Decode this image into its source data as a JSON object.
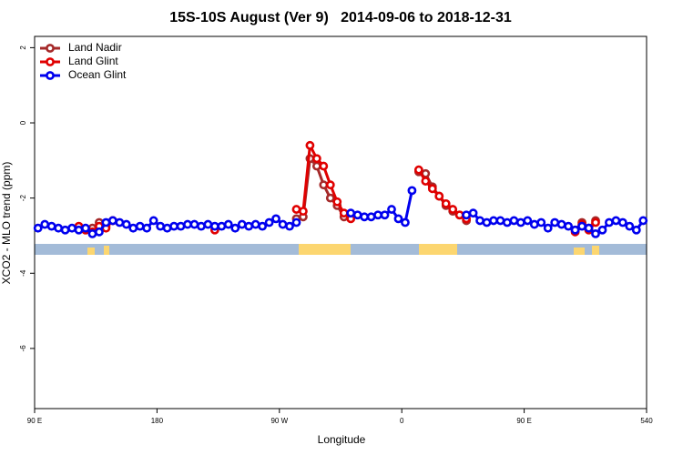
{
  "chart_data": {
    "type": "line",
    "title": "15S-10S August (Ver 9)   2014-09-06 to 2018-12-31",
    "xlabel": "Longitude",
    "ylabel": "XCO2 - MLO trend (ppm)",
    "xlim": [
      90,
      540
    ],
    "ylim": [
      -7.6,
      2.3
    ],
    "xticks": [
      {
        "value": 90,
        "label": "90 E"
      },
      180,
      {
        "value": 270,
        "label": "90 W"
      },
      {
        "value": 360,
        "label": "0"
      },
      {
        "value": 450,
        "label": "90 E"
      },
      540
    ],
    "yticks": [
      2,
      0,
      -2,
      -4,
      -6
    ],
    "legend": "top-left",
    "series": [
      {
        "name": "Land Nadir",
        "color": "#a52a2a",
        "x": [
          127.5,
          132.5,
          137.5,
          142.5,
          147.5,
          215,
          282.5,
          287.5,
          292.5,
          297.5,
          302.5,
          307.5,
          312.5,
          317.5,
          345,
          372.5,
          377.5,
          382.5,
          387.5,
          392.5,
          397.5,
          402.5,
          407.5,
          450,
          487.5,
          492.5,
          497.5,
          502.5
        ],
        "values": [
          -2.85,
          -2.8,
          -2.65,
          -2.75,
          -2.6,
          null,
          -2.55,
          -2.5,
          -0.95,
          -1.15,
          -1.65,
          -2.0,
          -2.2,
          -2.5,
          null,
          -1.3,
          -1.35,
          -1.7,
          -1.95,
          -2.2,
          -2.35,
          -2.45,
          -2.6,
          null,
          -2.85,
          -2.65,
          -2.8,
          -2.6
        ]
      },
      {
        "name": "Land Glint",
        "color": "#e00000",
        "x": [
          122.5,
          127.5,
          132.5,
          137.5,
          142.5,
          147.5,
          185,
          222.5,
          250,
          282.5,
          287.5,
          292.5,
          297.5,
          302.5,
          307.5,
          312.5,
          317.5,
          322.5,
          345,
          372.5,
          377.5,
          382.5,
          387.5,
          392.5,
          397.5,
          402.5,
          407.5,
          450,
          487.5,
          492.5,
          497.5,
          502.5
        ],
        "values": [
          -2.75,
          -2.85,
          -2.9,
          -2.75,
          -2.8,
          -2.6,
          null,
          -2.85,
          null,
          -2.3,
          -2.35,
          -0.6,
          -0.95,
          -1.15,
          -1.65,
          -2.1,
          -2.4,
          -2.55,
          null,
          -1.25,
          -1.55,
          -1.75,
          -1.95,
          -2.15,
          -2.3,
          -2.45,
          -2.55,
          null,
          -2.9,
          -2.7,
          -2.85,
          -2.65
        ]
      },
      {
        "name": "Ocean Glint",
        "color": "#0000ee",
        "x": [
          92.5,
          97.5,
          102.5,
          107.5,
          112.5,
          117.5,
          122.5,
          127.5,
          132.5,
          137.5,
          142.5,
          147.5,
          152.5,
          157.5,
          162.5,
          167.5,
          172.5,
          177.5,
          182.5,
          187.5,
          192.5,
          197.5,
          202.5,
          207.5,
          212.5,
          217.5,
          222.5,
          227.5,
          232.5,
          237.5,
          242.5,
          247.5,
          252.5,
          257.5,
          262.5,
          267.5,
          272.5,
          277.5,
          282.5,
          302.5,
          322.5,
          327.5,
          332.5,
          337.5,
          342.5,
          347.5,
          352.5,
          357.5,
          362.5,
          367.5,
          387.5,
          407.5,
          412.5,
          417.5,
          422.5,
          427.5,
          432.5,
          437.5,
          442.5,
          447.5,
          452.5,
          457.5,
          462.5,
          467.5,
          472.5,
          477.5,
          482.5,
          487.5,
          492.5,
          497.5,
          502.5,
          507.5,
          512.5,
          517.5,
          522.5,
          527.5,
          532.5,
          537.5
        ],
        "values": [
          -2.8,
          -2.7,
          -2.75,
          -2.8,
          -2.85,
          -2.8,
          -2.85,
          -2.8,
          -2.95,
          -2.9,
          -2.65,
          -2.6,
          -2.65,
          -2.7,
          -2.8,
          -2.75,
          -2.8,
          -2.6,
          -2.75,
          -2.8,
          -2.75,
          -2.75,
          -2.7,
          -2.7,
          -2.75,
          -2.7,
          -2.75,
          -2.75,
          -2.7,
          -2.8,
          -2.7,
          -2.75,
          -2.7,
          -2.75,
          -2.65,
          -2.55,
          -2.7,
          -2.75,
          -2.65,
          null,
          -2.4,
          -2.45,
          -2.5,
          -2.5,
          -2.45,
          -2.45,
          -2.3,
          -2.55,
          -2.65,
          -1.8,
          null,
          -2.45,
          -2.4,
          -2.6,
          -2.65,
          -2.6,
          -2.6,
          -2.65,
          -2.6,
          -2.65,
          -2.6,
          -2.7,
          -2.65,
          -2.8,
          -2.65,
          -2.7,
          -2.75,
          -2.85,
          -2.75,
          -2.8,
          -2.95,
          -2.85,
          -2.65,
          -2.6,
          -2.65,
          -2.75,
          -2.85,
          -2.6
        ]
      }
    ]
  }
}
